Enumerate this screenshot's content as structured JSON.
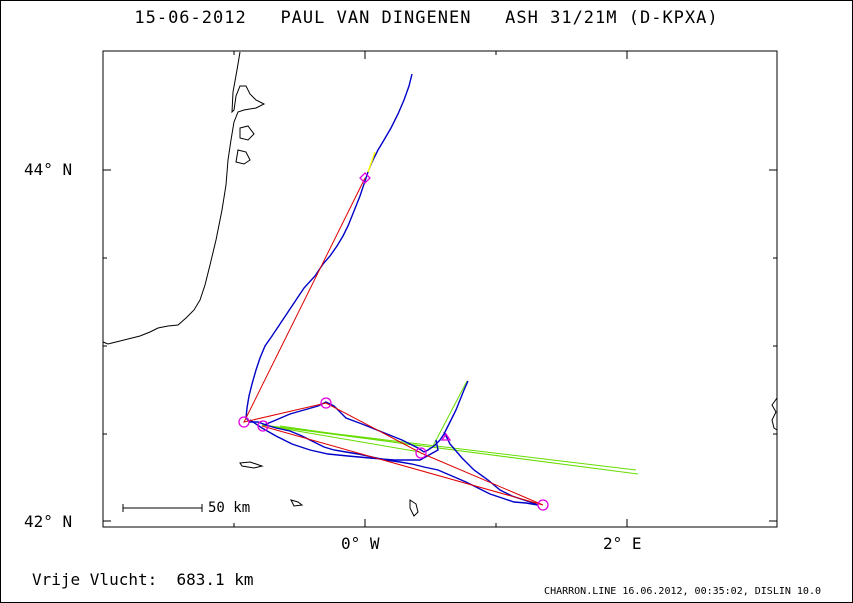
{
  "header": {
    "date": "15-06-2012",
    "pilot": "PAUL VAN DINGENEN",
    "glider": "ASH 31/21M (D-KPXA)"
  },
  "axes": {
    "y_labels": [
      "44° N",
      "42° N"
    ],
    "x_labels": [
      "0° W",
      "2° E"
    ]
  },
  "scale_bar": {
    "label": "50 km"
  },
  "footer": {
    "distance_label": "Vrije Vlucht:",
    "distance_value": "683.1 km",
    "program_info": "CHARRON.LINE 16.06.2012, 00:35:02, DISLIN 10.0"
  },
  "colors": {
    "track": "#0000c8",
    "task_line": "#e00000",
    "alt_line": "#66dd00",
    "turnpoint": "#e000e0",
    "highlight": "#ffff00",
    "coast": "#000000"
  }
}
